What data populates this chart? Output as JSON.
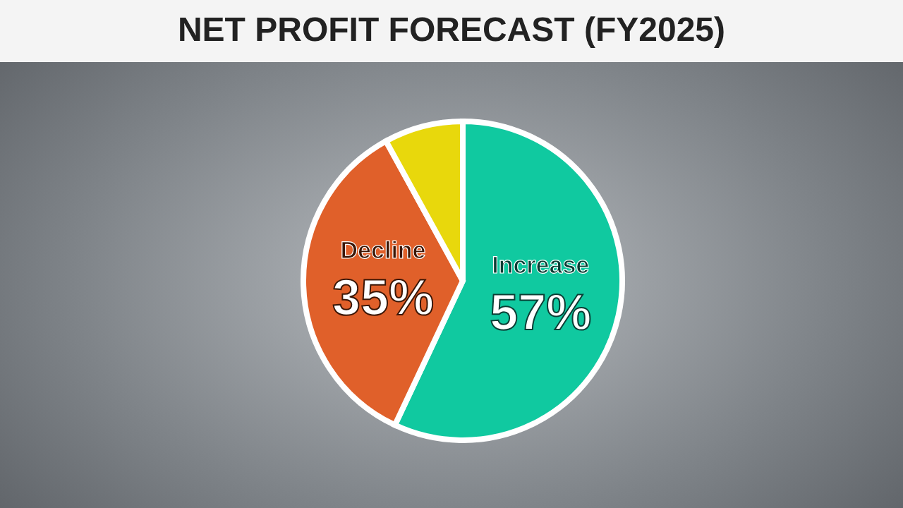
{
  "chart_data": {
    "type": "pie",
    "title": "NET PROFIT FORECAST (FY2025)",
    "categories": [
      "Increase",
      "Decline",
      null
    ],
    "values": [
      57,
      35,
      8
    ],
    "colors": [
      "#10c9a0",
      "#e0602a",
      "#e8d80c"
    ],
    "value_labels": [
      "57%",
      "35%",
      null
    ]
  }
}
